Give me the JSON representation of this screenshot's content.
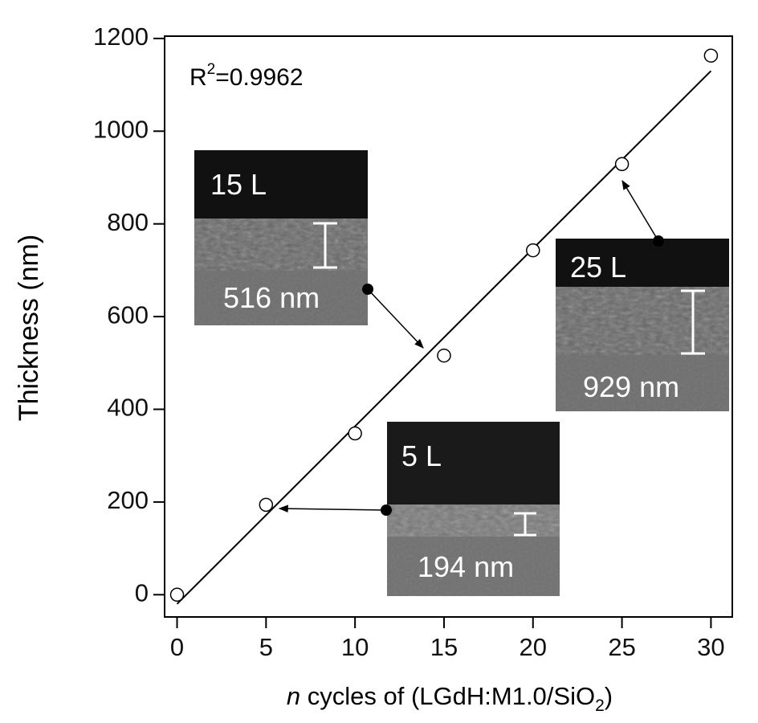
{
  "chart_data": {
    "type": "scatter",
    "x_label": {
      "italic": "n",
      "main": " cycles of (LGdH:M1.0/SiO",
      "subscript": "2",
      "end": ")"
    },
    "y_label": "Thickness (nm)",
    "x": [
      0,
      5,
      10,
      15,
      20,
      25,
      30
    ],
    "values": [
      0,
      194,
      348,
      516,
      743,
      929,
      1163
    ],
    "marker_color": "#000000",
    "fit_line": {
      "x": [
        0,
        30
      ],
      "values": [
        -20,
        1130
      ],
      "color": "#000000"
    },
    "r_squared": {
      "base": "R",
      "superscript": "2",
      "text": "=0.9962"
    },
    "xlim": [
      -0.7,
      31.2
    ],
    "ylim": [
      -48,
      1205
    ],
    "xticks": [
      0,
      5,
      10,
      15,
      20,
      25,
      30
    ],
    "yticks": [
      0,
      200,
      400,
      600,
      800,
      1000,
      1200
    ],
    "insets": [
      {
        "layers": "15 L",
        "thickness": "516 nm"
      },
      {
        "layers": "25 L",
        "thickness": "929 nm"
      },
      {
        "layers": "5 L",
        "thickness": "194 nm"
      }
    ]
  }
}
